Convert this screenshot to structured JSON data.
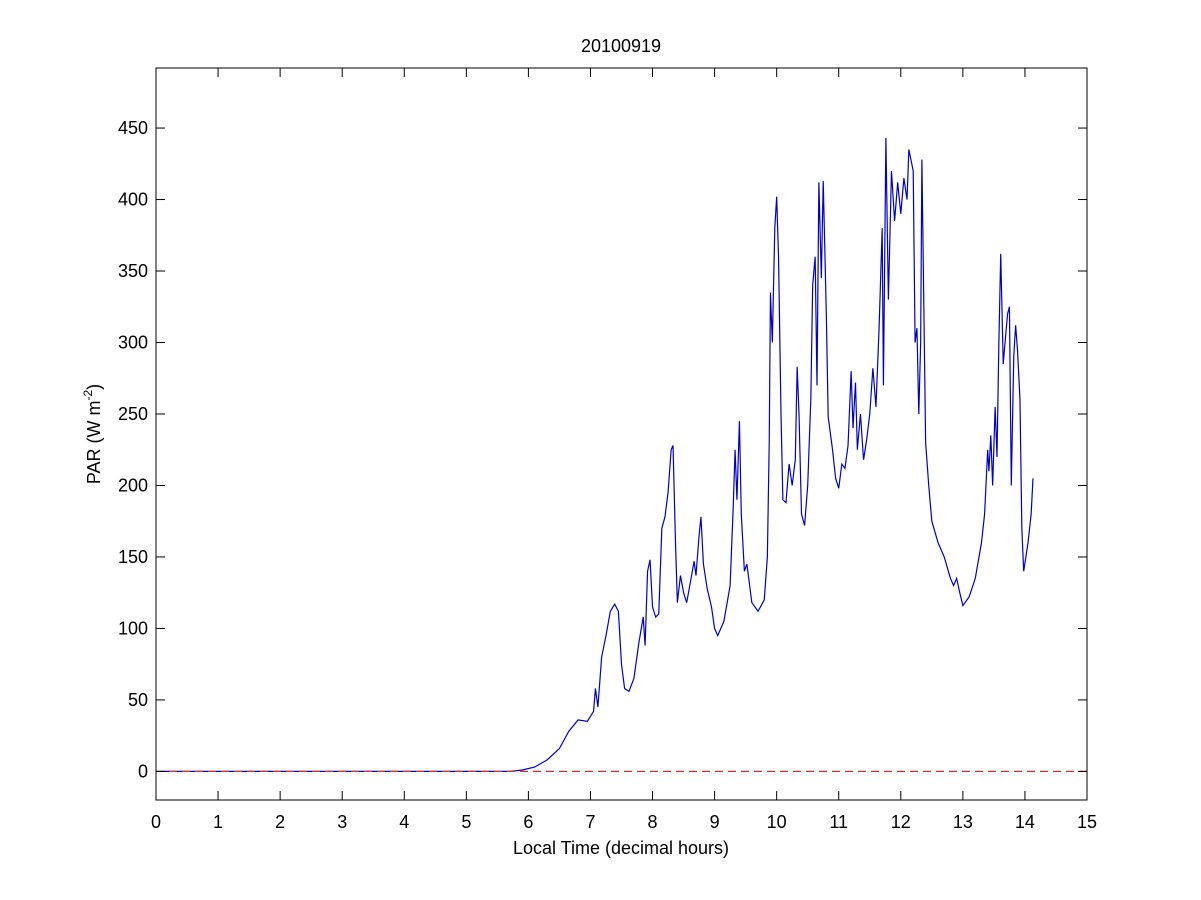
{
  "chart_data": {
    "type": "line",
    "title": "20100919",
    "xlabel": "Local Time (decimal hours)",
    "ylabel": {
      "text": "PAR (W m",
      "sup": "-2",
      "end": ")"
    },
    "xlim": [
      0,
      15
    ],
    "xticks": [
      0,
      1,
      2,
      3,
      4,
      5,
      6,
      7,
      8,
      9,
      10,
      11,
      12,
      13,
      14,
      15
    ],
    "ylim": [
      -20,
      492
    ],
    "yticks": [
      0,
      50,
      100,
      150,
      200,
      250,
      300,
      350,
      400,
      450
    ],
    "series": [
      {
        "color": "#0000cc",
        "dash": false,
        "x": [
          0,
          5.7,
          5.9,
          6.1,
          6.3,
          6.5,
          6.65,
          6.8,
          6.95,
          7.05,
          7.08,
          7.12,
          7.18,
          7.25,
          7.32,
          7.39,
          7.45,
          7.5,
          7.55,
          7.62,
          7.7,
          7.78,
          7.85,
          7.88,
          7.92,
          7.96,
          8.0,
          8.05,
          8.1,
          8.15,
          8.2,
          8.25,
          8.3,
          8.33,
          8.37,
          8.4,
          8.45,
          8.5,
          8.55,
          8.6,
          8.67,
          8.7,
          8.75,
          8.78,
          8.82,
          8.88,
          8.95,
          9.0,
          9.05,
          9.15,
          9.25,
          9.3,
          9.33,
          9.36,
          9.4,
          9.43,
          9.48,
          9.52,
          9.55,
          9.6,
          9.7,
          9.8,
          9.85,
          9.88,
          9.9,
          9.93,
          9.97,
          10.0,
          10.03,
          10.07,
          10.1,
          10.15,
          10.2,
          10.25,
          10.3,
          10.33,
          10.36,
          10.4,
          10.45,
          10.5,
          10.55,
          10.58,
          10.62,
          10.65,
          10.68,
          10.72,
          10.75,
          10.8,
          10.83,
          10.9,
          10.95,
          11.0,
          11.05,
          11.1,
          11.15,
          11.2,
          11.23,
          11.27,
          11.3,
          11.35,
          11.4,
          11.45,
          11.5,
          11.55,
          11.6,
          11.65,
          11.7,
          11.72,
          11.76,
          11.8,
          11.85,
          11.9,
          11.95,
          12.0,
          12.05,
          12.1,
          12.13,
          12.2,
          12.23,
          12.26,
          12.29,
          12.32,
          12.34,
          12.4,
          12.45,
          12.5,
          12.6,
          12.7,
          12.8,
          12.85,
          12.9,
          12.95,
          13.0,
          13.1,
          13.2,
          13.3,
          13.35,
          13.4,
          13.42,
          13.45,
          13.48,
          13.52,
          13.55,
          13.58,
          13.61,
          13.65,
          13.68,
          13.72,
          13.75,
          13.78,
          13.82,
          13.85,
          13.88,
          13.92,
          13.95,
          13.98,
          14.05,
          14.1,
          14.13
        ],
        "values": [
          0,
          0,
          1,
          3,
          8,
          16,
          28,
          36,
          35,
          42,
          58,
          45,
          80,
          95,
          112,
          117,
          112,
          75,
          58,
          56,
          65,
          90,
          108,
          88,
          140,
          148,
          115,
          108,
          110,
          170,
          178,
          195,
          225,
          228,
          160,
          118,
          137,
          125,
          118,
          130,
          147,
          137,
          165,
          178,
          145,
          128,
          115,
          100,
          95,
          105,
          130,
          185,
          225,
          190,
          245,
          180,
          140,
          145,
          135,
          118,
          112,
          120,
          150,
          230,
          335,
          300,
          380,
          402,
          360,
          250,
          190,
          188,
          215,
          200,
          218,
          283,
          250,
          180,
          172,
          200,
          260,
          340,
          360,
          270,
          412,
          345,
          413,
          320,
          248,
          225,
          205,
          198,
          215,
          212,
          228,
          280,
          240,
          272,
          225,
          250,
          218,
          232,
          250,
          282,
          255,
          310,
          380,
          270,
          443,
          330,
          420,
          385,
          412,
          390,
          415,
          400,
          435,
          420,
          300,
          310,
          250,
          300,
          428,
          230,
          200,
          175,
          160,
          150,
          135,
          130,
          135,
          125,
          116,
          122,
          135,
          160,
          180,
          225,
          210,
          235,
          200,
          255,
          220,
          300,
          362,
          285,
          300,
          320,
          325,
          200,
          290,
          312,
          295,
          260,
          170,
          140,
          160,
          180,
          205
        ]
      },
      {
        "color": "#cc3333",
        "dash": true,
        "x": [
          0,
          15
        ],
        "values": [
          0,
          0
        ]
      }
    ]
  }
}
